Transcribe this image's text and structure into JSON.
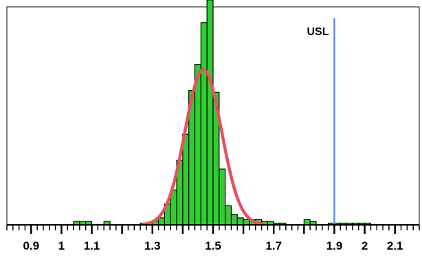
{
  "chart_data": {
    "type": "bar",
    "subtype": "histogram-with-normal-fit",
    "xlim": [
      0.82,
      2.18
    ],
    "ylim": [
      0,
      125
    ],
    "bin_width": 0.02,
    "bins": [
      {
        "x0": 1.04,
        "count": 2
      },
      {
        "x0": 1.06,
        "count": 2
      },
      {
        "x0": 1.08,
        "count": 2
      },
      {
        "x0": 1.14,
        "count": 2
      },
      {
        "x0": 1.26,
        "count": 1
      },
      {
        "x0": 1.28,
        "count": 1
      },
      {
        "x0": 1.3,
        "count": 2
      },
      {
        "x0": 1.32,
        "count": 4
      },
      {
        "x0": 1.34,
        "count": 12
      },
      {
        "x0": 1.36,
        "count": 20
      },
      {
        "x0": 1.38,
        "count": 37
      },
      {
        "x0": 1.4,
        "count": 52
      },
      {
        "x0": 1.42,
        "count": 77
      },
      {
        "x0": 1.44,
        "count": 92
      },
      {
        "x0": 1.46,
        "count": 116
      },
      {
        "x0": 1.48,
        "count": 129
      },
      {
        "x0": 1.5,
        "count": 76
      },
      {
        "x0": 1.52,
        "count": 32
      },
      {
        "x0": 1.54,
        "count": 11
      },
      {
        "x0": 1.56,
        "count": 6
      },
      {
        "x0": 1.58,
        "count": 4
      },
      {
        "x0": 1.6,
        "count": 3
      },
      {
        "x0": 1.62,
        "count": 3
      },
      {
        "x0": 1.64,
        "count": 3
      },
      {
        "x0": 1.66,
        "count": 2
      },
      {
        "x0": 1.68,
        "count": 2
      },
      {
        "x0": 1.7,
        "count": 1
      },
      {
        "x0": 1.72,
        "count": 1
      },
      {
        "x0": 1.8,
        "count": 3
      },
      {
        "x0": 1.82,
        "count": 2
      },
      {
        "x0": 1.88,
        "count": 1
      },
      {
        "x0": 1.9,
        "count": 1
      },
      {
        "x0": 1.92,
        "count": 1
      },
      {
        "x0": 1.94,
        "count": 1
      },
      {
        "x0": 1.96,
        "count": 1
      },
      {
        "x0": 1.98,
        "count": 1
      },
      {
        "x0": 2.0,
        "count": 1
      }
    ],
    "normal_fit": {
      "mean": 1.468,
      "sd": 0.06,
      "peak": 89
    },
    "reference_lines": [
      {
        "label": "USL",
        "x": 1.9
      }
    ],
    "x_tick_labels": [
      {
        "value": 0.9,
        "label": "0.9"
      },
      {
        "value": 1.0,
        "label": "1"
      },
      {
        "value": 1.1,
        "label": "1.1"
      },
      {
        "value": 1.3,
        "label": "1.3"
      },
      {
        "value": 1.5,
        "label": "1.5"
      },
      {
        "value": 1.7,
        "label": "1.7"
      },
      {
        "value": 1.9,
        "label": "1.9"
      },
      {
        "value": 2.0,
        "label": "2"
      },
      {
        "value": 2.1,
        "label": "2.1"
      }
    ],
    "major_tick_step": 0.1,
    "minor_tick_step": 0.02,
    "grid": false,
    "colors": {
      "bars": "#33cc33",
      "bar_edge": "#000000",
      "curve": "#e8505f",
      "usl": "#5b8de8"
    }
  }
}
